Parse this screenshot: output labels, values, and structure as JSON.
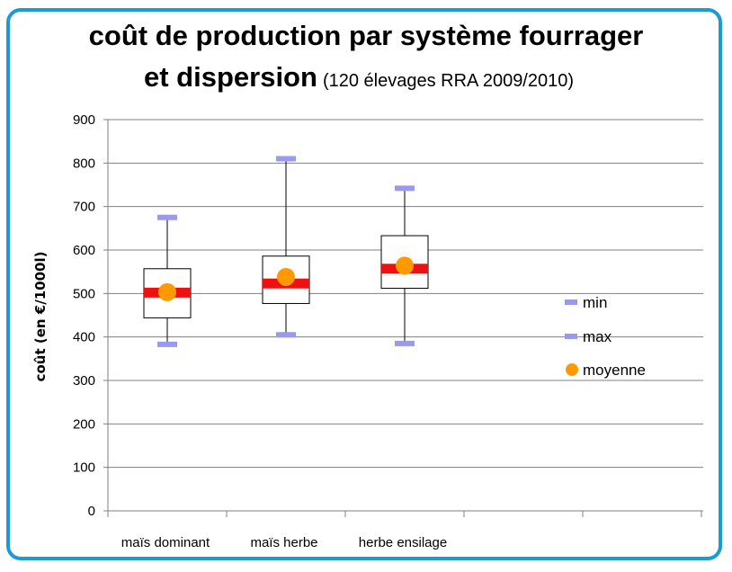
{
  "title": {
    "line1": "coût de production par système fourrager",
    "line2": "et dispersion",
    "subtitle": "(120 élevages RRA 2009/2010)"
  },
  "colors": {
    "frame": "#1a9ad6",
    "whisker_cap": "#9999ee",
    "median_bar": "#ee1111",
    "mean_marker": "#ff9900",
    "gridline": "#808080"
  },
  "chart_data": {
    "type": "boxplot",
    "ylabel": "coût (en €/1000l)",
    "ylim": [
      0,
      900
    ],
    "yticks": [
      0,
      100,
      200,
      300,
      400,
      500,
      600,
      700,
      800,
      900
    ],
    "grid": true,
    "legend_position": "right",
    "categories": [
      "maïs dominant",
      "maïs herbe",
      "herbe ensilage"
    ],
    "series": [
      {
        "category": "maïs dominant",
        "min": 383,
        "q1": 444,
        "median": 502,
        "q3": 557,
        "max": 675,
        "mean": 503
      },
      {
        "category": "maïs herbe",
        "min": 405,
        "q1": 477,
        "median": 523,
        "q3": 586,
        "max": 810,
        "mean": 538
      },
      {
        "category": "herbe ensilage",
        "min": 385,
        "q1": 512,
        "median": 557,
        "q3": 633,
        "max": 742,
        "mean": 564
      }
    ],
    "legend": [
      "min",
      "max",
      "moyenne"
    ]
  }
}
